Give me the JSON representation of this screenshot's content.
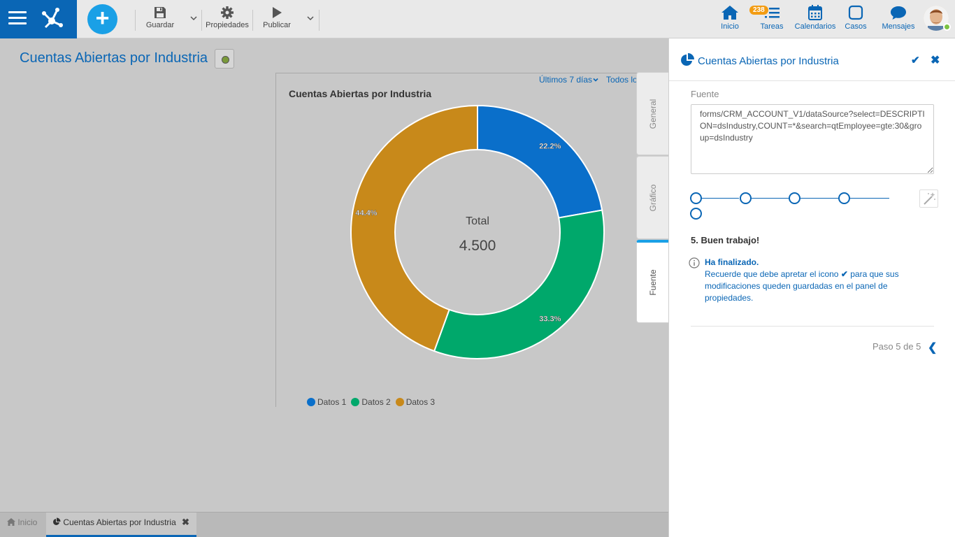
{
  "toolbar": {
    "save_label": "Guardar",
    "properties_label": "Propiedades",
    "publish_label": "Publicar"
  },
  "nav": {
    "home_label": "Inicio",
    "tasks_label": "Tareas",
    "tasks_badge": "238",
    "calendars_label": "Calendarios",
    "cases_label": "Casos",
    "messages_label": "Mensajes"
  },
  "page": {
    "title": "Cuentas Abiertas por Industria"
  },
  "card": {
    "period_label": "Últimos 7 días",
    "all_label": "Todos los"
  },
  "chart_data": {
    "type": "pie",
    "title": "Cuentas Abiertas por Industria",
    "categories": [
      "Datos 1",
      "Datos 2",
      "Datos 3"
    ],
    "values": [
      22.2,
      33.3,
      44.4
    ],
    "value_labels": [
      "22.2%",
      "33.3%",
      "44.4%"
    ],
    "colors": [
      "#0a6fca",
      "#00a86b",
      "#c8891a"
    ],
    "center_label": "Total",
    "center_value": "4.500",
    "donut": true,
    "legend_position": "bottom-left"
  },
  "tabs": {
    "general_label": "General",
    "chart_label": "Gráfico",
    "source_label": "Fuente"
  },
  "panel": {
    "title": "Cuentas Abiertas por Industria",
    "source_label": "Fuente",
    "source_value": "forms/CRM_ACCOUNT_V1/dataSource?select=DESCRIPTION=dsIndustry,COUNT=*&search=qtEmployee=gte:30&group=dsIndustry",
    "step_heading": "5. Buen trabajo!",
    "info_title": "Ha finalizado.",
    "info_text_before": "Recuerde que debe apretar el icono",
    "info_text_after": "para que sus modificaciones queden guardadas en el panel de propiedades.",
    "pager": "Paso 5 de 5",
    "steps_total": 5,
    "current_step": 5
  },
  "bottom_tabs": {
    "home_label": "Inicio",
    "main_label": "Cuentas Abiertas por Industria"
  },
  "icons": [
    "menu-icon",
    "logo-icon",
    "add-icon",
    "save-icon",
    "gear-icon",
    "play-icon",
    "chevron-down-icon",
    "home-icon",
    "tasks-icon",
    "calendar-icon",
    "cases-icon",
    "messages-icon",
    "pie-icon",
    "check-icon",
    "close-icon",
    "wand-icon",
    "info-icon",
    "chevron-left-icon"
  ]
}
